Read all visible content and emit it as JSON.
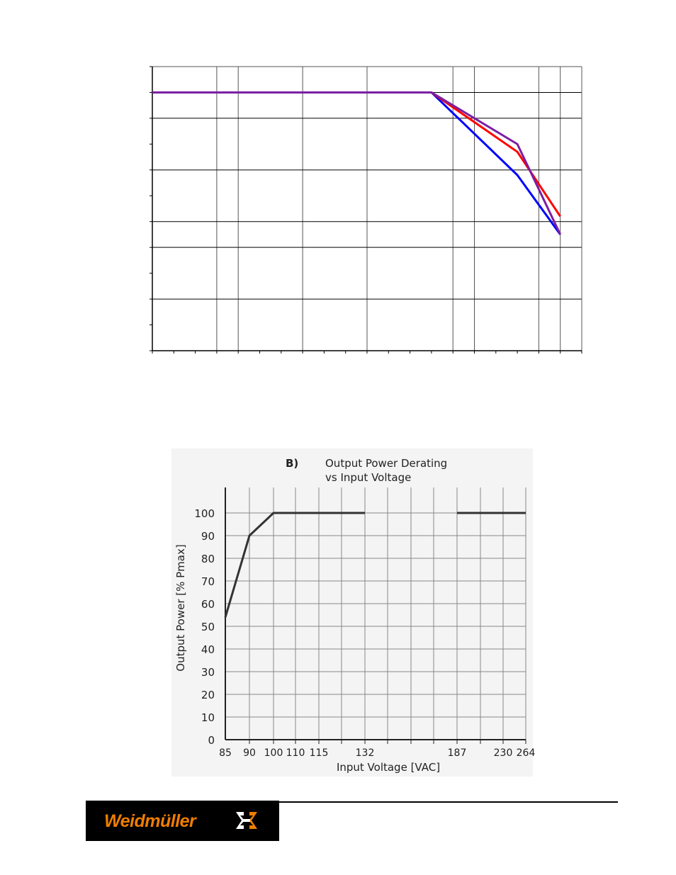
{
  "chart_data": [
    {
      "type": "line",
      "title": "",
      "xlabel": "",
      "ylabel": "",
      "x_ticks": 20,
      "y_ticks": 11,
      "grid": true,
      "series": [
        {
          "color": "#0000ff",
          "points": [
            [
              0,
              10
            ],
            [
              13,
              10
            ],
            [
              17,
              6.8
            ],
            [
              19,
              4.5
            ]
          ]
        },
        {
          "color": "#ff0000",
          "points": [
            [
              0,
              10
            ],
            [
              13,
              10
            ],
            [
              17,
              7.7
            ],
            [
              19,
              5.2
            ]
          ]
        },
        {
          "color": "#7b1fa2",
          "points": [
            [
              0,
              10
            ],
            [
              13,
              10
            ],
            [
              17,
              8.0
            ],
            [
              19,
              4.5
            ]
          ]
        }
      ]
    },
    {
      "type": "line",
      "panel_label": "B)",
      "title": "Output Power Derating",
      "subtitle": "vs Input Voltage",
      "xlabel": "Input Voltage [VAC]",
      "ylabel": "Output Power [% Pmax]",
      "x_tick_labels": [
        "85",
        "90",
        "100",
        "110",
        "115",
        "132",
        "187",
        "230",
        "264"
      ],
      "y_tick_labels": [
        "0",
        "10",
        "20",
        "30",
        "40",
        "50",
        "60",
        "70",
        "80",
        "90",
        "100"
      ],
      "ylim": [
        0,
        110
      ],
      "grid": true,
      "series": [
        {
          "color": "#333333",
          "segments": [
            [
              [
                "85",
                54
              ],
              [
                "90",
                90
              ],
              [
                "100",
                100
              ],
              [
                "132",
                100
              ]
            ],
            [
              [
                "187",
                100
              ],
              [
                "264",
                100
              ]
            ]
          ]
        }
      ]
    }
  ],
  "footer": {
    "logo_text": "Weidmüller",
    "logo_mark": "logo-mark"
  }
}
